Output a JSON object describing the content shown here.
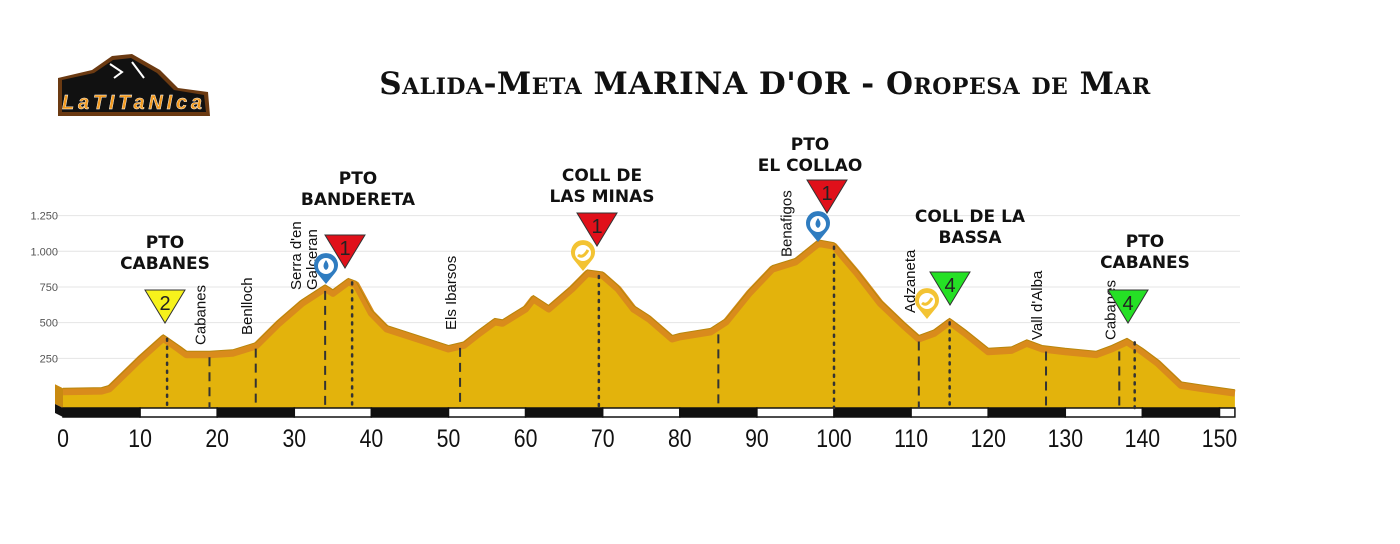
{
  "title": "Salida-Meta MARINA D'OR - Oropesa de Mar",
  "logo_text": "LaTitanica",
  "colors": {
    "fill": "#e3b30c",
    "band": "#d98b1c",
    "cat1": "#e0101a",
    "cat2": "#f6f21c",
    "cat4": "#25e025",
    "water": "#2f7cc0",
    "food": "#f3c333"
  },
  "chart_data": {
    "type": "area",
    "title": "Salida-Meta MARINA D'OR - Oropesa de Mar",
    "xlabel": "",
    "ylabel": "",
    "xlim": [
      0,
      152
    ],
    "ylim": [
      0,
      1250
    ],
    "x_ticks": [
      "0",
      "10",
      "20",
      "30",
      "40",
      "50",
      "60",
      "70",
      "80",
      "90",
      "100",
      "110",
      "120",
      "130",
      "140",
      "150"
    ],
    "y_ticks": [
      "250",
      "500",
      "750",
      "1.000",
      "1.250"
    ],
    "grid": true,
    "profile": [
      [
        0,
        40
      ],
      [
        5,
        45
      ],
      [
        6,
        60
      ],
      [
        10,
        270
      ],
      [
        13,
        415
      ],
      [
        15,
        340
      ],
      [
        16,
        300
      ],
      [
        19,
        300
      ],
      [
        22,
        310
      ],
      [
        25,
        360
      ],
      [
        28,
        520
      ],
      [
        31,
        660
      ],
      [
        34,
        765
      ],
      [
        35,
        730
      ],
      [
        37,
        810
      ],
      [
        38,
        790
      ],
      [
        40,
        590
      ],
      [
        42,
        480
      ],
      [
        46,
        410
      ],
      [
        50,
        340
      ],
      [
        52,
        365
      ],
      [
        54,
        450
      ],
      [
        56,
        530
      ],
      [
        57,
        520
      ],
      [
        60,
        620
      ],
      [
        61,
        690
      ],
      [
        63,
        620
      ],
      [
        66,
        760
      ],
      [
        68,
        870
      ],
      [
        70,
        855
      ],
      [
        72,
        760
      ],
      [
        74,
        620
      ],
      [
        76,
        550
      ],
      [
        79,
        410
      ],
      [
        80,
        425
      ],
      [
        84,
        460
      ],
      [
        86,
        530
      ],
      [
        89,
        730
      ],
      [
        92,
        900
      ],
      [
        95,
        950
      ],
      [
        98,
        1080
      ],
      [
        100,
        1060
      ],
      [
        103,
        870
      ],
      [
        106,
        660
      ],
      [
        109,
        505
      ],
      [
        111,
        410
      ],
      [
        113,
        450
      ],
      [
        115,
        530
      ],
      [
        117,
        450
      ],
      [
        120,
        320
      ],
      [
        123,
        330
      ],
      [
        125,
        380
      ],
      [
        127,
        340
      ],
      [
        130,
        320
      ],
      [
        134,
        300
      ],
      [
        136,
        340
      ],
      [
        138,
        390
      ],
      [
        140,
        320
      ],
      [
        142,
        240
      ],
      [
        145,
        85
      ],
      [
        148,
        60
      ],
      [
        152,
        30
      ]
    ],
    "towns": [
      {
        "km": 19,
        "name": "Cabanes"
      },
      {
        "km": 25,
        "name": "Benlloch"
      },
      {
        "km": 34,
        "name": "Serra d'en",
        "name2": "Galceran"
      },
      {
        "km": 51.5,
        "name": "Els Ibarsos"
      },
      {
        "km": 85,
        "name": ""
      },
      {
        "km": 95,
        "name": "Benafigos",
        "noline": true
      },
      {
        "km": 111,
        "name": "Adzaneta"
      },
      {
        "km": 127.5,
        "name": "Vall d'Alba"
      },
      {
        "km": 137,
        "name": "Cabanes"
      }
    ],
    "climbs": [
      {
        "km": 13.5,
        "line1": "PTO",
        "line2": "CABANES",
        "category": "2"
      },
      {
        "km": 37.5,
        "line1": "PTO",
        "line2": "BANDERETA",
        "category": "1"
      },
      {
        "km": 69.5,
        "line1": "COLL DE",
        "line2": "LAS MINAS",
        "category": "1"
      },
      {
        "km": 100,
        "line1": "PTO",
        "line2": "EL COLLAO",
        "category": "1"
      },
      {
        "km": 115,
        "line1": "COLL DE LA",
        "line2": "BASSA",
        "category": "4"
      },
      {
        "km": 139,
        "line1": "PTO",
        "line2": "CABANES",
        "category": "4"
      }
    ],
    "supply_points": [
      {
        "km": 34,
        "type": "water"
      },
      {
        "km": 68,
        "type": "food"
      },
      {
        "km": 98,
        "type": "water"
      },
      {
        "km": 112,
        "type": "food"
      }
    ]
  }
}
